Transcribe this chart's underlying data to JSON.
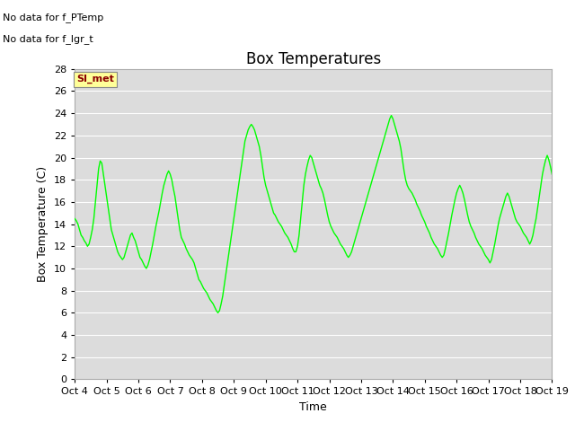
{
  "title": "Box Temperatures",
  "xlabel": "Time",
  "ylabel": "Box Temperature (C)",
  "ylim": [
    0,
    28
  ],
  "line_color": "#00FF00",
  "line_width": 1.0,
  "background_color": "#dcdcdc",
  "figure_color": "#ffffff",
  "legend_line_color": "#00FF00",
  "si_met_box_facecolor": "#ffff99",
  "si_met_box_edgecolor": "#888888",
  "si_met_text_color": "#8B0000",
  "no_data_text_1": "No data for f_PTemp",
  "no_data_text_2": "No data for f_lgr_t",
  "xtick_labels": [
    "Oct 4",
    "Oct 5",
    "Oct 6",
    "Oct 7",
    "Oct 8",
    "Oct 9",
    "Oct 10",
    "Oct 11",
    "Oct 12",
    "Oct 13",
    "Oct 14",
    "Oct 15",
    "Oct 16",
    "Oct 17",
    "Oct 18",
    "Oct 19"
  ],
  "ytick_values": [
    0,
    2,
    4,
    6,
    8,
    10,
    12,
    14,
    16,
    18,
    20,
    22,
    24,
    26,
    28
  ],
  "font_size_title": 12,
  "font_size_axis_label": 9,
  "font_size_tick": 8,
  "font_size_nodata": 8,
  "font_size_simet": 8,
  "font_size_legend": 9,
  "temperature_x": [
    4.0,
    4.05,
    4.1,
    4.15,
    4.2,
    4.25,
    4.3,
    4.35,
    4.4,
    4.45,
    4.5,
    4.55,
    4.6,
    4.65,
    4.7,
    4.75,
    4.8,
    4.85,
    4.9,
    4.95,
    5.0,
    5.05,
    5.1,
    5.15,
    5.2,
    5.25,
    5.3,
    5.35,
    5.4,
    5.45,
    5.5,
    5.55,
    5.6,
    5.65,
    5.7,
    5.75,
    5.8,
    5.85,
    5.9,
    5.95,
    6.0,
    6.05,
    6.1,
    6.15,
    6.2,
    6.25,
    6.3,
    6.35,
    6.4,
    6.45,
    6.5,
    6.55,
    6.6,
    6.65,
    6.7,
    6.75,
    6.8,
    6.85,
    6.9,
    6.95,
    7.0,
    7.05,
    7.1,
    7.15,
    7.2,
    7.25,
    7.3,
    7.35,
    7.4,
    7.45,
    7.5,
    7.55,
    7.6,
    7.65,
    7.7,
    7.75,
    7.8,
    7.85,
    7.9,
    7.95,
    8.0,
    8.05,
    8.1,
    8.15,
    8.2,
    8.25,
    8.3,
    8.35,
    8.4,
    8.45,
    8.5,
    8.55,
    8.6,
    8.65,
    8.7,
    8.75,
    8.8,
    8.85,
    8.9,
    8.95,
    9.0,
    9.05,
    9.1,
    9.15,
    9.2,
    9.25,
    9.3,
    9.35,
    9.4,
    9.45,
    9.5,
    9.55,
    9.6,
    9.65,
    9.7,
    9.75,
    9.8,
    9.85,
    9.9,
    9.95,
    10.0,
    10.05,
    10.1,
    10.15,
    10.2,
    10.25,
    10.3,
    10.35,
    10.4,
    10.45,
    10.5,
    10.55,
    10.6,
    10.65,
    10.7,
    10.75,
    10.8,
    10.85,
    10.9,
    10.95,
    11.0,
    11.05,
    11.1,
    11.15,
    11.2,
    11.25,
    11.3,
    11.35,
    11.4,
    11.45,
    11.5,
    11.55,
    11.6,
    11.65,
    11.7,
    11.75,
    11.8,
    11.85,
    11.9,
    11.95,
    12.0,
    12.05,
    12.1,
    12.15,
    12.2,
    12.25,
    12.3,
    12.35,
    12.4,
    12.45,
    12.5,
    12.55,
    12.6,
    12.65,
    12.7,
    12.75,
    12.8,
    12.85,
    12.9,
    12.95,
    13.0,
    13.05,
    13.1,
    13.15,
    13.2,
    13.25,
    13.3,
    13.35,
    13.4,
    13.45,
    13.5,
    13.55,
    13.6,
    13.65,
    13.7,
    13.75,
    13.8,
    13.85,
    13.9,
    13.95,
    14.0,
    14.05,
    14.1,
    14.15,
    14.2,
    14.25,
    14.3,
    14.35,
    14.4,
    14.45,
    14.5,
    14.55,
    14.6,
    14.65,
    14.7,
    14.75,
    14.8,
    14.85,
    14.9,
    14.95,
    15.0,
    15.05,
    15.1,
    15.15,
    15.2,
    15.25,
    15.3,
    15.35,
    15.4,
    15.45,
    15.5,
    15.55,
    15.6,
    15.65,
    15.7,
    15.75,
    15.8,
    15.85,
    15.9,
    15.95,
    16.0,
    16.05,
    16.1,
    16.15,
    16.2,
    16.25,
    16.3,
    16.35,
    16.4,
    16.45,
    16.5,
    16.55,
    16.6,
    16.65,
    16.7,
    16.75,
    16.8,
    16.85,
    16.9,
    16.95,
    17.0,
    17.05,
    17.1,
    17.15,
    17.2,
    17.25,
    17.3,
    17.35,
    17.4,
    17.45,
    17.5,
    17.55,
    17.6,
    17.65,
    17.7,
    17.75,
    17.8,
    17.85,
    17.9,
    17.95,
    18.0,
    18.05,
    18.1,
    18.15,
    18.2,
    18.25,
    18.3,
    18.35,
    18.4,
    18.45,
    18.5,
    18.55,
    18.6,
    18.65,
    18.7,
    18.75,
    18.8,
    18.85,
    18.9,
    18.95,
    19.0
  ],
  "temperature_y": [
    14.5,
    14.3,
    14.0,
    13.5,
    13.0,
    12.8,
    12.5,
    12.3,
    12.0,
    12.2,
    12.8,
    13.5,
    14.5,
    16.0,
    17.5,
    19.0,
    19.7,
    19.5,
    18.5,
    17.5,
    16.5,
    15.5,
    14.5,
    13.5,
    13.0,
    12.5,
    12.0,
    11.5,
    11.2,
    11.0,
    10.8,
    11.0,
    11.5,
    12.0,
    12.5,
    13.0,
    13.2,
    12.8,
    12.5,
    12.0,
    11.5,
    11.0,
    10.8,
    10.5,
    10.2,
    10.0,
    10.3,
    10.8,
    11.5,
    12.2,
    13.0,
    13.8,
    14.5,
    15.2,
    16.0,
    16.8,
    17.5,
    18.0,
    18.5,
    18.8,
    18.5,
    18.0,
    17.2,
    16.5,
    15.5,
    14.5,
    13.5,
    12.8,
    12.5,
    12.2,
    11.8,
    11.5,
    11.2,
    11.0,
    10.8,
    10.5,
    10.0,
    9.5,
    9.0,
    8.8,
    8.5,
    8.2,
    8.0,
    7.8,
    7.5,
    7.2,
    7.0,
    6.8,
    6.5,
    6.2,
    6.0,
    6.2,
    6.8,
    7.5,
    8.5,
    9.5,
    10.5,
    11.5,
    12.5,
    13.5,
    14.5,
    15.5,
    16.5,
    17.5,
    18.5,
    19.5,
    20.5,
    21.5,
    22.0,
    22.5,
    22.8,
    23.0,
    22.8,
    22.5,
    22.0,
    21.5,
    21.0,
    20.2,
    19.2,
    18.2,
    17.5,
    17.0,
    16.5,
    16.0,
    15.5,
    15.0,
    14.8,
    14.5,
    14.2,
    14.0,
    13.8,
    13.5,
    13.2,
    13.0,
    12.8,
    12.5,
    12.2,
    11.8,
    11.5,
    11.5,
    12.0,
    13.0,
    14.5,
    16.0,
    17.5,
    18.5,
    19.2,
    19.8,
    20.2,
    20.0,
    19.5,
    19.0,
    18.5,
    18.0,
    17.5,
    17.2,
    16.8,
    16.2,
    15.5,
    14.8,
    14.2,
    13.8,
    13.5,
    13.2,
    13.0,
    12.8,
    12.5,
    12.2,
    12.0,
    11.8,
    11.5,
    11.2,
    11.0,
    11.2,
    11.5,
    12.0,
    12.5,
    13.0,
    13.5,
    14.0,
    14.5,
    15.0,
    15.5,
    16.0,
    16.5,
    17.0,
    17.5,
    18.0,
    18.5,
    19.0,
    19.5,
    20.0,
    20.5,
    21.0,
    21.5,
    22.0,
    22.5,
    23.0,
    23.5,
    23.8,
    23.5,
    23.0,
    22.5,
    22.0,
    21.5,
    20.8,
    19.8,
    18.8,
    18.0,
    17.5,
    17.2,
    17.0,
    16.8,
    16.5,
    16.2,
    15.8,
    15.5,
    15.2,
    14.8,
    14.5,
    14.2,
    13.8,
    13.5,
    13.2,
    12.8,
    12.5,
    12.2,
    12.0,
    11.8,
    11.5,
    11.2,
    11.0,
    11.2,
    11.8,
    12.5,
    13.2,
    14.0,
    14.8,
    15.5,
    16.2,
    16.8,
    17.2,
    17.5,
    17.2,
    16.8,
    16.2,
    15.5,
    14.8,
    14.2,
    13.8,
    13.5,
    13.2,
    12.8,
    12.5,
    12.2,
    12.0,
    11.8,
    11.5,
    11.2,
    11.0,
    10.8,
    10.5,
    10.8,
    11.5,
    12.2,
    13.0,
    13.8,
    14.5,
    15.0,
    15.5,
    16.0,
    16.5,
    16.8,
    16.5,
    16.0,
    15.5,
    15.0,
    14.5,
    14.2,
    14.0,
    13.8,
    13.5,
    13.2,
    13.0,
    12.8,
    12.5,
    12.2,
    12.5,
    13.0,
    13.8,
    14.5,
    15.5,
    16.5,
    17.5,
    18.5,
    19.2,
    19.8,
    20.2,
    19.8,
    19.2,
    18.5
  ]
}
